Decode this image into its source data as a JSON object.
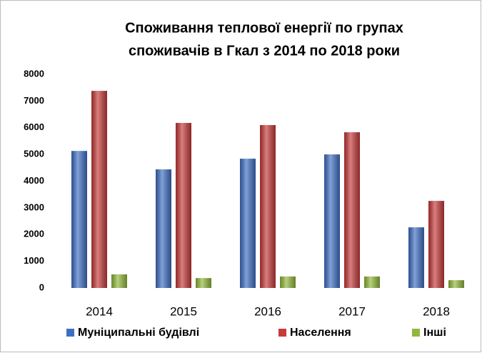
{
  "chart_data": {
    "type": "bar",
    "title": [
      "Споживання теплової енергії по групах",
      "споживачів в Гкал з 2014 по 2018 роки"
    ],
    "categories": [
      "2014",
      "2015",
      "2016",
      "2017",
      "2018"
    ],
    "series": [
      {
        "name": "Муніципальні будівлі",
        "color": "#3f6fc4",
        "values": [
          5130,
          4440,
          4840,
          5000,
          2270
        ]
      },
      {
        "name": "Населення",
        "color": "#c63a3a",
        "values": [
          7380,
          6180,
          6100,
          5830,
          3260
        ]
      },
      {
        "name": "Інші",
        "color": "#92b83a",
        "values": [
          510,
          370,
          430,
          430,
          290
        ]
      }
    ],
    "ylim": [
      0,
      8000
    ],
    "yticks": [
      0,
      1000,
      2000,
      3000,
      4000,
      5000,
      6000,
      7000,
      8000
    ],
    "grid": false,
    "legend": "bottom"
  }
}
